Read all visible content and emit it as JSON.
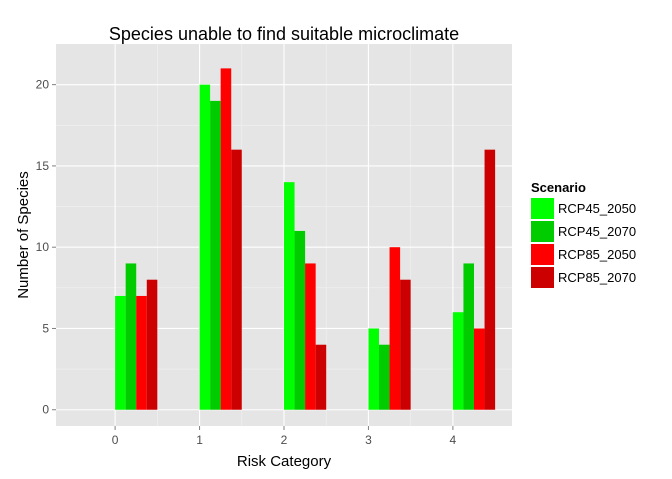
{
  "chart_data": {
    "type": "bar",
    "title": "Species unable to find suitable microclimate",
    "xlabel": "Risk Category",
    "ylabel": "Number of Species",
    "categories": [
      "0",
      "1",
      "2",
      "3",
      "4"
    ],
    "y_ticks": [
      "0",
      "5",
      "10",
      "15",
      "20"
    ],
    "ylim": [
      -1,
      22.5
    ],
    "grid": true,
    "legend": {
      "title": "Scenario",
      "placement": "right"
    },
    "series": [
      {
        "name": "RCP45_2050",
        "color": "#00ff00",
        "values": [
          7,
          20,
          14,
          5,
          6
        ]
      },
      {
        "name": "RCP45_2070",
        "color": "#00cc00",
        "values": [
          9,
          19,
          11,
          4,
          9
        ]
      },
      {
        "name": "RCP85_2050",
        "color": "#ff0000",
        "values": [
          7,
          21,
          9,
          10,
          5
        ]
      },
      {
        "name": "RCP85_2070",
        "color": "#cc0000",
        "values": [
          8,
          16,
          4,
          8,
          16
        ]
      }
    ]
  }
}
